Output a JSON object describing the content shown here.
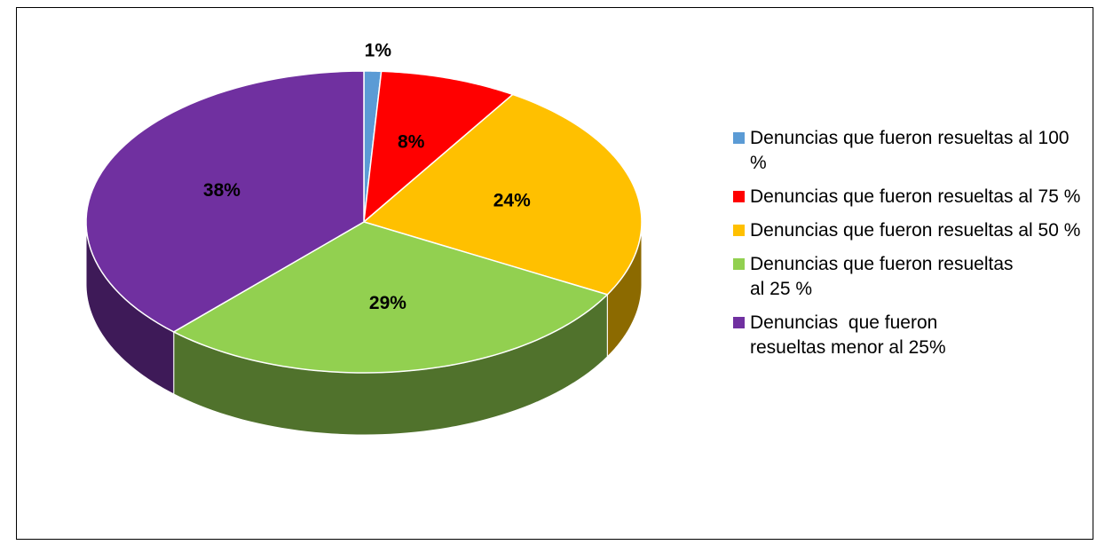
{
  "chart_data": {
    "type": "pie",
    "categories": [
      "Denuncias que fueron resueltas al 100 %",
      "Denuncias que fueron resueltas al 75 %",
      "Denuncias que fueron resueltas al 50 %",
      "Denuncias que fueron resueltas al 25 %",
      "Denuncias  que fueron resueltas menor al 25%"
    ],
    "values": [
      1,
      8,
      24,
      29,
      38
    ],
    "value_labels": [
      "1%",
      "8%",
      "24%",
      "29%",
      "38%"
    ],
    "colors": [
      "#5b9bd5",
      "#ff0000",
      "#ffc000",
      "#92d050",
      "#7030a0"
    ],
    "legend": "right"
  }
}
